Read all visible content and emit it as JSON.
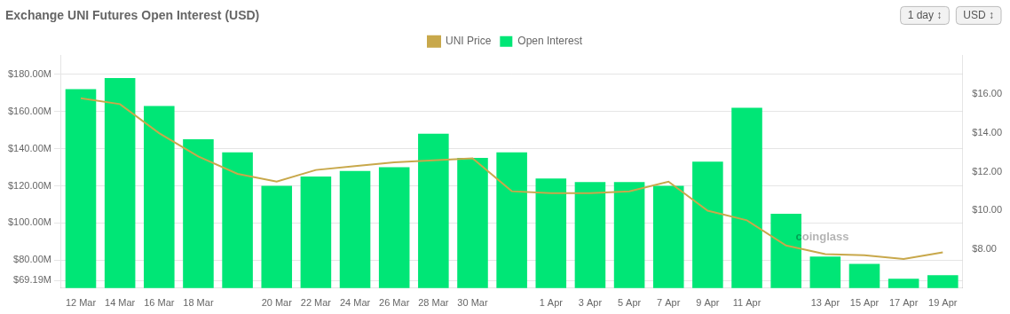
{
  "chart_data": {
    "type": "bar",
    "title": "Exchange UNI Futures Open Interest (USD)",
    "categories": [
      "12 Mar",
      "14 Mar",
      "16 Mar",
      "18 Mar",
      null,
      "20 Mar",
      "22 Mar",
      "24 Mar",
      "26 Mar",
      "28 Mar",
      "30 Mar",
      null,
      "1 Apr",
      "3 Apr",
      "5 Apr",
      "7 Apr",
      "9 Apr",
      "11 Apr",
      null,
      "13 Apr",
      "15 Apr",
      "17 Apr",
      "19 Apr"
    ],
    "series": [
      {
        "name": "UNI Price",
        "type": "line",
        "color": "#c8a84b",
        "axis": "y2",
        "values": [
          15.8,
          15.5,
          14.0,
          12.8,
          11.9,
          11.5,
          12.1,
          12.3,
          12.5,
          12.6,
          12.7,
          11.0,
          10.9,
          10.9,
          11.0,
          11.5,
          10.0,
          9.5,
          8.2,
          7.75,
          7.7,
          7.5,
          7.85
        ]
      },
      {
        "name": "Open Interest",
        "type": "bar",
        "color": "#00e676",
        "values": [
          172,
          178,
          163,
          145,
          138,
          120,
          125,
          128,
          130,
          148,
          135,
          138,
          124,
          122,
          122,
          120,
          133,
          162,
          105,
          82,
          78,
          70,
          72
        ]
      }
    ],
    "ylim": [
      65,
      190
    ],
    "yticks": [
      {
        "value": 69.19,
        "label": "$69.19M"
      },
      {
        "value": 80,
        "label": "$80.00M"
      },
      {
        "value": 100,
        "label": "$100.00M"
      },
      {
        "value": 120,
        "label": "$120.00M"
      },
      {
        "value": 140,
        "label": "$140.00M"
      },
      {
        "value": 160,
        "label": "$160.00M"
      },
      {
        "value": 180,
        "label": "$180.00M"
      }
    ],
    "y2lim": [
      6.0,
      18.0
    ],
    "y2ticks": [
      {
        "value": 8.0,
        "label": "$8.00"
      },
      {
        "value": 10.0,
        "label": "$10.00"
      },
      {
        "value": 12.0,
        "label": "$12.00"
      },
      {
        "value": 14.0,
        "label": "$14.00"
      },
      {
        "value": 16.0,
        "label": "$16.00"
      }
    ],
    "grid": true,
    "legend": "top",
    "annotations": [
      "coinglass",
      "1 day ↕",
      "USD ↕"
    ]
  }
}
